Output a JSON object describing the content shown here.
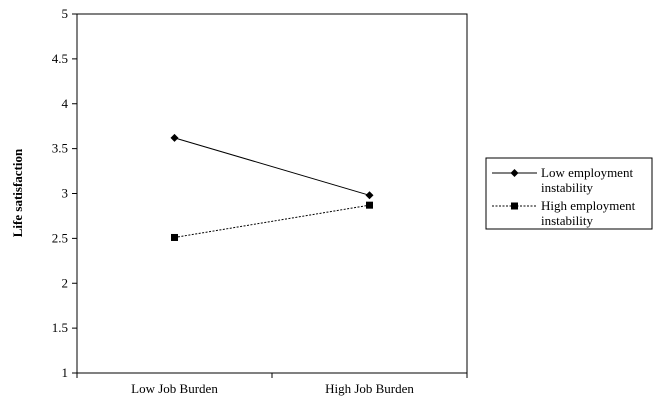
{
  "chart_data": {
    "type": "line",
    "categories": [
      "Low Job Burden",
      "High Job Burden"
    ],
    "series": [
      {
        "name": "Low employment instability",
        "name_lines": [
          "Low employment",
          "instability"
        ],
        "values": [
          3.62,
          2.98
        ],
        "marker": "diamond",
        "line_style": "solid",
        "color": "#000000"
      },
      {
        "name": "High employment instability",
        "name_lines": [
          "High employment",
          "instability"
        ],
        "values": [
          2.51,
          2.87
        ],
        "marker": "square",
        "line_style": "dashed",
        "color": "#000000"
      }
    ],
    "xlabel": "",
    "ylabel": "Life satisfaction",
    "ylim": [
      1,
      5
    ],
    "yticks": [
      "1",
      "1.5",
      "2",
      "2.5",
      "3",
      "3.5",
      "4",
      "4.5",
      "5"
    ],
    "grid": false,
    "legend_position": "right"
  }
}
